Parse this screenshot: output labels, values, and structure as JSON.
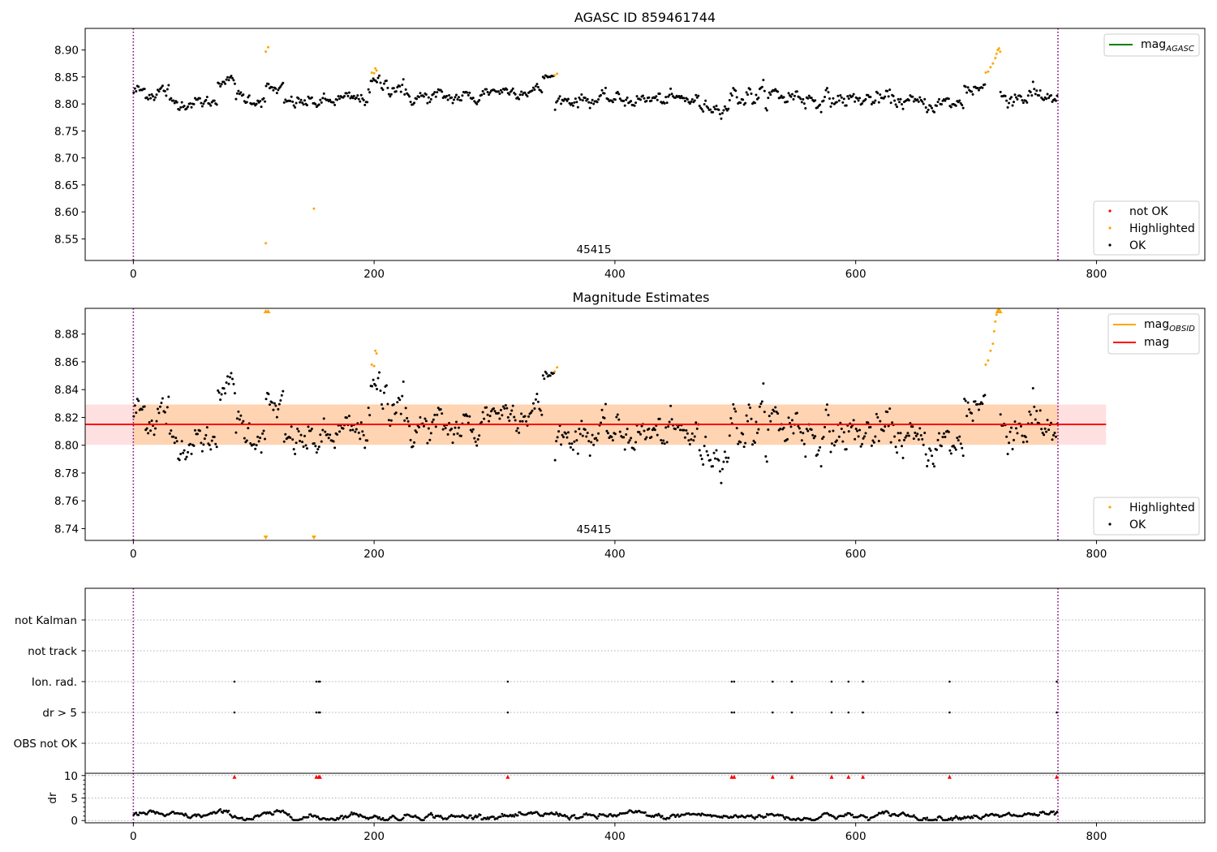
{
  "chart_data": [
    {
      "type": "scatter",
      "title": "AGASC ID 859461744",
      "annotation": "45415",
      "xlim": [
        -40,
        890
      ],
      "ylim": [
        8.51,
        8.94
      ],
      "x_ticks": [
        0,
        200,
        400,
        600,
        800
      ],
      "y_ticks": [
        8.55,
        8.6,
        8.65,
        8.7,
        8.75,
        8.8,
        8.85,
        8.9
      ],
      "vlines": [
        0,
        768
      ],
      "grid": false,
      "legend_lines": {
        "placement": "upper right",
        "entries": [
          {
            "label": "mag",
            "sub": "AGASC",
            "color": "#008000"
          }
        ]
      },
      "legend_points": {
        "placement": "lower right",
        "entries": [
          {
            "label": "not OK",
            "color": "#ff0000"
          },
          {
            "label": "Highlighted",
            "color": "#ffa500"
          },
          {
            "label": "OK",
            "color": "#000000"
          }
        ]
      },
      "segments": [
        {
          "x0": 0,
          "x1": 30,
          "level": 8.823,
          "noise": 0.012,
          "status": "OK"
        },
        {
          "x0": 30,
          "x1": 70,
          "level": 8.803,
          "noise": 0.008,
          "status": "OK"
        },
        {
          "x0": 70,
          "x1": 85,
          "level": 8.843,
          "noise": 0.006,
          "status": "OK"
        },
        {
          "x0": 85,
          "x1": 110,
          "level": 8.81,
          "noise": 0.01,
          "status": "OK"
        },
        {
          "x0": 110,
          "x1": 125,
          "level": 8.826,
          "noise": 0.008,
          "status": "OK"
        },
        {
          "x0": 125,
          "x1": 165,
          "level": 8.803,
          "noise": 0.009,
          "status": "OK"
        },
        {
          "x0": 165,
          "x1": 195,
          "level": 8.808,
          "noise": 0.009,
          "status": "OK"
        },
        {
          "x0": 195,
          "x1": 225,
          "level": 8.835,
          "noise": 0.012,
          "status": "OK"
        },
        {
          "x0": 225,
          "x1": 290,
          "level": 8.812,
          "noise": 0.01,
          "status": "OK"
        },
        {
          "x0": 290,
          "x1": 340,
          "level": 8.825,
          "noise": 0.008,
          "status": "OK"
        },
        {
          "x0": 340,
          "x1": 350,
          "level": 8.85,
          "noise": 0.004,
          "status": "OK"
        },
        {
          "x0": 350,
          "x1": 470,
          "level": 8.808,
          "noise": 0.009,
          "status": "OK"
        },
        {
          "x0": 470,
          "x1": 495,
          "level": 8.795,
          "noise": 0.008,
          "status": "OK"
        },
        {
          "x0": 495,
          "x1": 560,
          "level": 8.815,
          "noise": 0.014,
          "status": "OK"
        },
        {
          "x0": 560,
          "x1": 640,
          "level": 8.808,
          "noise": 0.011,
          "status": "OK"
        },
        {
          "x0": 640,
          "x1": 690,
          "level": 8.8,
          "noise": 0.01,
          "status": "OK"
        },
        {
          "x0": 690,
          "x1": 708,
          "level": 8.83,
          "noise": 0.012,
          "status": "OK"
        },
        {
          "x0": 720,
          "x1": 768,
          "level": 8.815,
          "noise": 0.013,
          "status": "OK"
        }
      ],
      "highlighted_points": [
        [
          110,
          8.542
        ],
        [
          110,
          8.897
        ],
        [
          112,
          8.905
        ],
        [
          150,
          8.606
        ],
        [
          198,
          8.858
        ],
        [
          200,
          8.857
        ],
        [
          201,
          8.866
        ],
        [
          202,
          8.862
        ],
        [
          350,
          8.853
        ],
        [
          352,
          8.856
        ],
        [
          708,
          8.858
        ],
        [
          710,
          8.86
        ],
        [
          712,
          8.868
        ],
        [
          714,
          8.875
        ],
        [
          716,
          8.885
        ],
        [
          717,
          8.893
        ],
        [
          718,
          8.9
        ],
        [
          720,
          8.897
        ],
        [
          719,
          8.903
        ]
      ]
    },
    {
      "type": "scatter",
      "title": "Magnitude Estimates",
      "annotation": "45415",
      "xlim": [
        -40,
        890
      ],
      "ylim": [
        8.7315,
        8.8985
      ],
      "x_ticks": [
        0,
        200,
        400,
        600,
        800
      ],
      "y_ticks": [
        8.74,
        8.76,
        8.78,
        8.8,
        8.82,
        8.84,
        8.86,
        8.88
      ],
      "vlines": [
        0,
        768
      ],
      "grid": false,
      "mag": 8.815,
      "mag_band": [
        8.8003,
        8.8293
      ],
      "mag_band_x": [
        -40,
        808
      ],
      "mag_obsid": 8.815,
      "mag_obsid_band": [
        8.8003,
        8.8293
      ],
      "mag_obsid_x": [
        0,
        768
      ],
      "legend_lines": {
        "placement": "upper right",
        "entries": [
          {
            "label": "mag",
            "sub": "OBSID",
            "color": "#ffa500"
          },
          {
            "label": "mag",
            "sub": "",
            "color": "#ff0000"
          }
        ]
      },
      "legend_points": {
        "placement": "lower right",
        "entries": [
          {
            "label": "Highlighted",
            "color": "#ffa500"
          },
          {
            "label": "OK",
            "color": "#000000"
          }
        ]
      },
      "highlighted_points": [
        [
          198,
          8.858
        ],
        [
          200,
          8.857
        ],
        [
          201,
          8.868
        ],
        [
          202,
          8.866
        ],
        [
          350,
          8.853
        ],
        [
          352,
          8.856
        ],
        [
          708,
          8.858
        ],
        [
          710,
          8.861
        ],
        [
          712,
          8.868
        ],
        [
          714,
          8.873
        ],
        [
          715,
          8.882
        ],
        [
          716,
          8.889
        ],
        [
          717,
          8.894
        ],
        [
          718,
          8.897
        ],
        [
          719,
          8.898
        ]
      ],
      "clipped_markers": [
        {
          "x": 110,
          "edge": "top"
        },
        {
          "x": 112,
          "edge": "top"
        },
        {
          "x": 718,
          "edge": "top"
        },
        {
          "x": 720,
          "edge": "top"
        },
        {
          "x": 110,
          "edge": "bottom"
        },
        {
          "x": 150,
          "edge": "bottom"
        }
      ]
    },
    {
      "type": "scatter",
      "xlim": [
        -40,
        890
      ],
      "x_ticks": [
        0,
        200,
        400,
        600,
        800
      ],
      "vlines": [
        0,
        768
      ],
      "grid": "horizontal dotted",
      "categories": [
        "not Kalman",
        "not track",
        "Ion. rad.",
        "dr > 5",
        "OBS not OK"
      ],
      "flags": {
        "not Kalman": [],
        "not track": [],
        "Ion. rad.": [
          84,
          152,
          154,
          155,
          311,
          497,
          499,
          531,
          547,
          580,
          594,
          606,
          678,
          767
        ],
        "dr > 5": [
          84,
          152,
          154,
          155,
          311,
          497,
          499,
          531,
          547,
          580,
          594,
          606,
          678,
          767
        ],
        "OBS not OK": []
      },
      "dr": {
        "ylabel": "dr",
        "ylim": [
          -0.5,
          10.5
        ],
        "y_ticks": [
          0,
          5,
          10
        ],
        "clipped_x": [
          84,
          152,
          154,
          155,
          311,
          497,
          499,
          531,
          547,
          580,
          594,
          606,
          678,
          767
        ],
        "level": 1.0,
        "noise": 0.35
      }
    }
  ]
}
